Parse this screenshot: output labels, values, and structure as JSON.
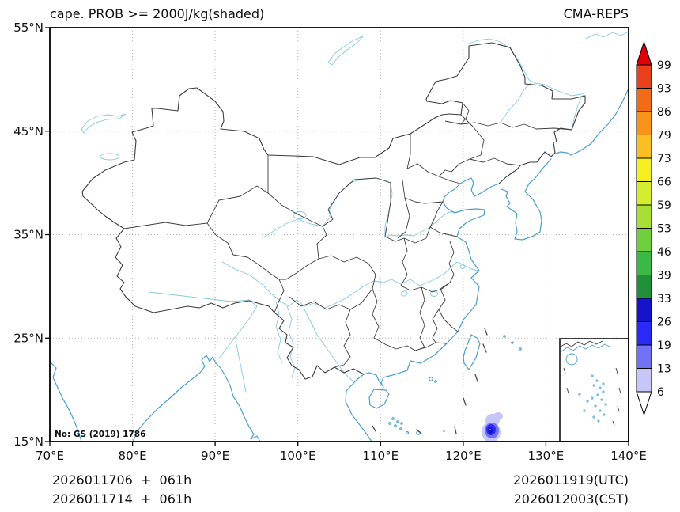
{
  "header": {
    "title": "cape. PROB >= 2000J/kg(shaded)",
    "model": "CMA-REPS"
  },
  "axes": {
    "lat_ticks": [
      "55°N",
      "45°N",
      "35°N",
      "25°N",
      "15°N"
    ],
    "lon_ticks": [
      "70°E",
      "80°E",
      "90°E",
      "100°E",
      "110°E",
      "120°E",
      "130°E",
      "140°E"
    ]
  },
  "colorbar": {
    "levels": [
      "99",
      "93",
      "86",
      "79",
      "73",
      "66",
      "59",
      "53",
      "46",
      "39",
      "33",
      "26",
      "19",
      "13",
      "6"
    ],
    "segment_colors": [
      "#ea411d",
      "#f26c17",
      "#f8941a",
      "#fbbf24",
      "#f7f020",
      "#d4ed2e",
      "#a8df35",
      "#6fcf3f",
      "#3cb844",
      "#1f9038",
      "#1414cc",
      "#2a2af8",
      "#7272f4",
      "#c6c6f8"
    ],
    "extend_above_color": "#df0008",
    "extend_below_color": "#ffffff"
  },
  "map": {
    "note": "No: GS (2019) 1786",
    "colors": {
      "boundary": "#3c3c3c",
      "coast": "#4a9fd0",
      "river": "#85c8e6",
      "grid": "#b5b5b5",
      "dash_line": "#4a4a4a"
    },
    "shaded_blob": {
      "colors": [
        "#c6c6f8",
        "#7272f4",
        "#2a2af8",
        "#1414cc",
        "#3cb844"
      ]
    }
  },
  "footer": {
    "left_line1": "2026011706  +  061h",
    "left_line2": "2026011714  +  061h",
    "right_line1": "2026011919(UTC)",
    "right_line2": "2026012003(CST)"
  }
}
